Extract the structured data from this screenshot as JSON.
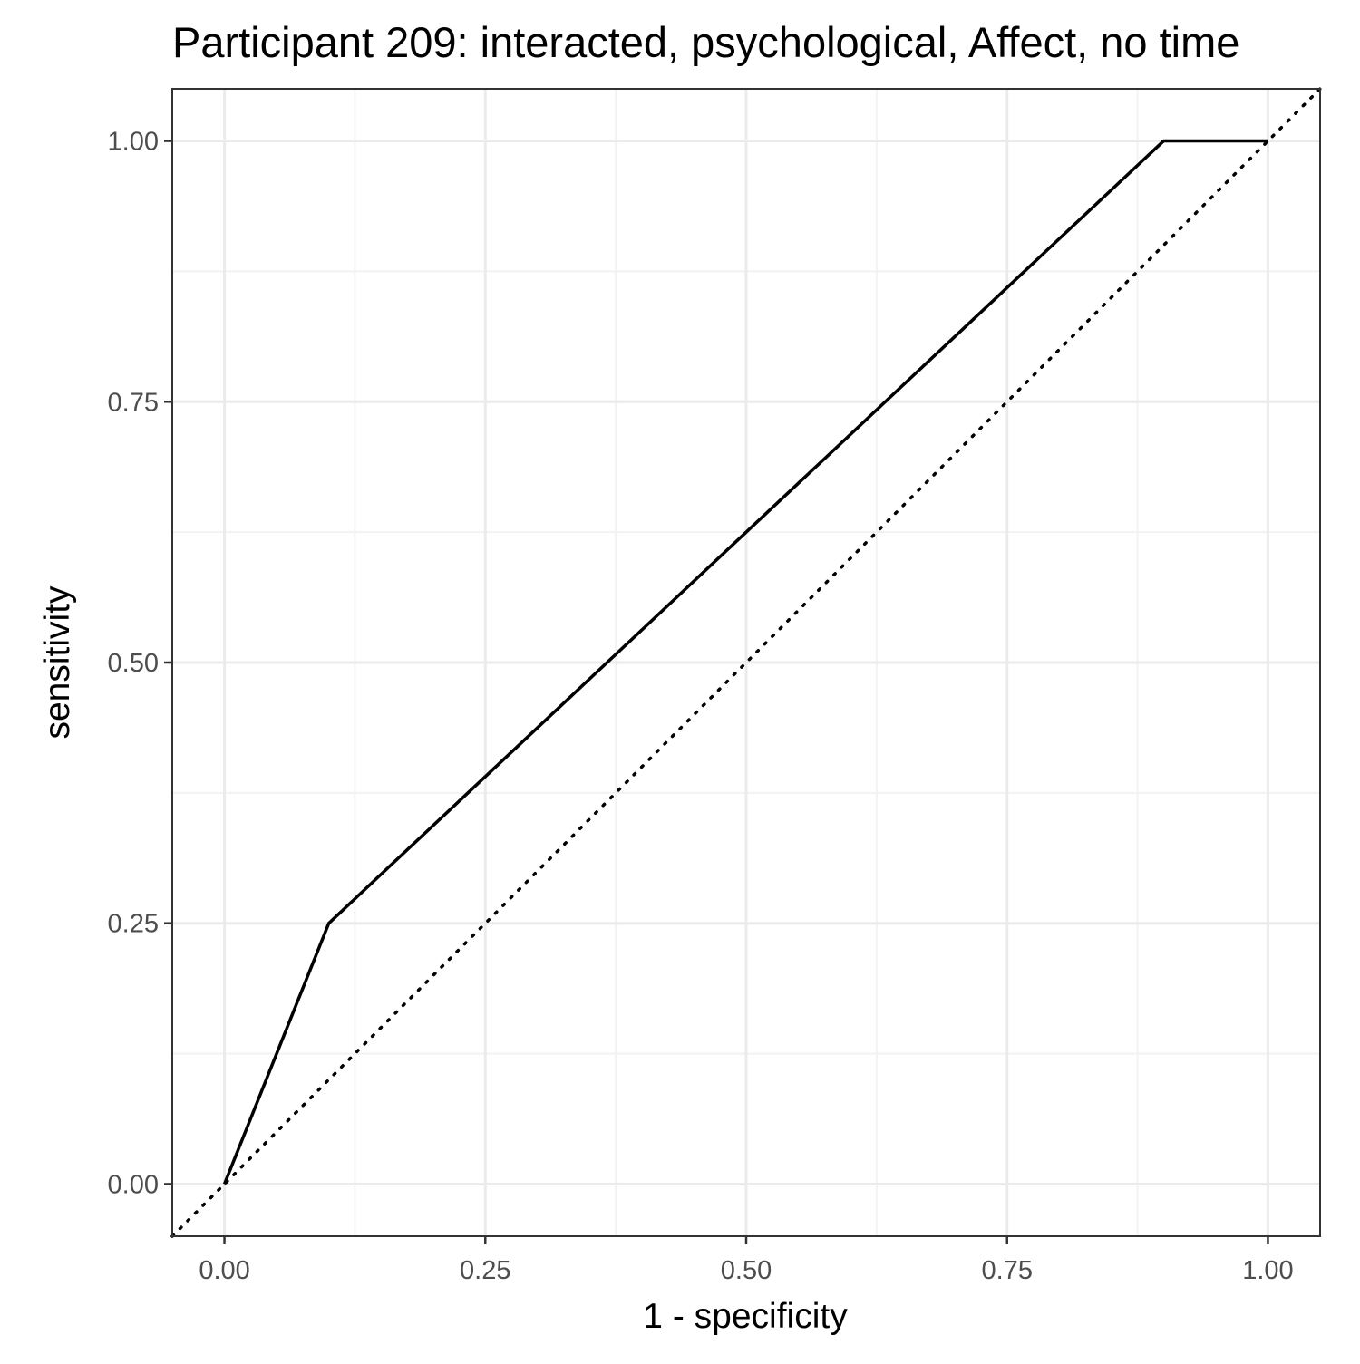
{
  "chart_data": {
    "type": "line",
    "title": "Participant 209: interacted, psychological, Affect, no time",
    "xlabel": "1 - specificity",
    "ylabel": "sensitivity",
    "xlim": [
      -0.05,
      1.05
    ],
    "ylim": [
      -0.05,
      1.05
    ],
    "x_ticks": [
      "0.00",
      "0.25",
      "0.50",
      "0.75",
      "1.00"
    ],
    "y_ticks": [
      "0.00",
      "0.25",
      "0.50",
      "0.75",
      "1.00"
    ],
    "grid": true,
    "series": [
      {
        "style": "solid",
        "color": "#000000",
        "x": [
          0.0,
          0.1,
          0.9,
          1.0
        ],
        "y": [
          0.0,
          0.25,
          1.0,
          1.0
        ]
      }
    ],
    "reference_line": {
      "style": "dotted",
      "color": "#000000",
      "x": [
        -0.05,
        1.05
      ],
      "y": [
        -0.05,
        1.05
      ]
    }
  },
  "colors": {
    "background": "#ffffff",
    "panel_border": "#333333",
    "grid_major": "#ebebeb",
    "grid_minor": "#f2f2f2",
    "tick_text": "#4d4d4d"
  }
}
